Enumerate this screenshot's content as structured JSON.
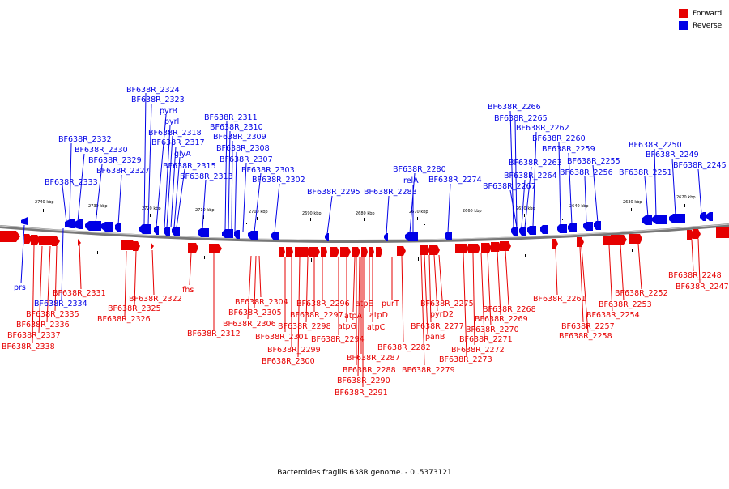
{
  "legend": {
    "forward": "Forward",
    "reverse": "Reverse"
  },
  "colors": {
    "forward": "#e60000",
    "reverse": "#0000e6",
    "backbone": "#777777"
  },
  "caption": "Bacteroides fragilis 638R genome. - 0..5373121",
  "ticks": [
    "2740 kbp",
    "2730 kbp",
    "2720 kbp",
    "2710 kbp",
    "2700 kbp",
    "2690 kbp",
    "2680 kbp",
    "2670 kbp",
    "2660 kbp",
    "2650 kbp",
    "2640 kbp",
    "2630 kbp",
    "2620 kbp"
  ],
  "reverse_labels": [
    "BF638R_2324",
    "BF638R_2323",
    "pyrB",
    "pyrI",
    "BF638R_2318",
    "BF638R_2317",
    "glyA",
    "BF638R_2315",
    "BF638R_2313",
    "BF638R_2332",
    "BF638R_2330",
    "BF638R_2329",
    "BF638R_2327",
    "BF638R_2333",
    "BF638R_2311",
    "BF638R_2310",
    "BF638R_2309",
    "BF638R_2308",
    "BF638R_2307",
    "BF638R_2303",
    "BF638R_2302",
    "BF638R_2295",
    "BF638R_2283",
    "BF638R_2280",
    "relA",
    "BF638R_2274",
    "BF638R_2266",
    "BF638R_2265",
    "BF638R_2262",
    "BF638R_2260",
    "BF638R_2259",
    "BF638R_2263",
    "BF638R_2264",
    "BF638R_2267",
    "BF638R_2255",
    "BF638R_2256",
    "BF638R_2250",
    "BF638R_2249",
    "BF638R_2251",
    "BF638R_2245",
    "prs",
    "BF638R_2334"
  ],
  "forward_labels": [
    "BF638R_2331",
    "BF638R_2335",
    "BF638R_2336",
    "BF638R_2337",
    "BF638R_2338",
    "BF638R_2322",
    "BF638R_2325",
    "BF638R_2326",
    "fhs",
    "BF638R_2312",
    "BF638R_2304",
    "BF638R_2305",
    "BF638R_2306",
    "BF638R_2296",
    "BF638R_2297",
    "BF638R_2298",
    "BF638R_2301",
    "BF638R_2299",
    "BF638R_2300",
    "BF638R_2294",
    "atpE",
    "atpA",
    "atpG",
    "atpD",
    "atpC",
    "purT",
    "BF638R_2287",
    "BF638R_2288",
    "BF638R_2290",
    "BF638R_2291",
    "BF638R_2282",
    "BF638R_2275",
    "pyrD2",
    "BF638R_2277",
    "panB",
    "BF638R_2279",
    "BF638R_2268",
    "BF638R_2269",
    "BF638R_2270",
    "BF638R_2271",
    "BF638R_2272",
    "BF638R_2273",
    "BF638R_2261",
    "BF638R_2252",
    "BF638R_2253",
    "BF638R_2254",
    "BF638R_2257",
    "BF638R_2258",
    "BF638R_2248",
    "BF638R_2247"
  ]
}
